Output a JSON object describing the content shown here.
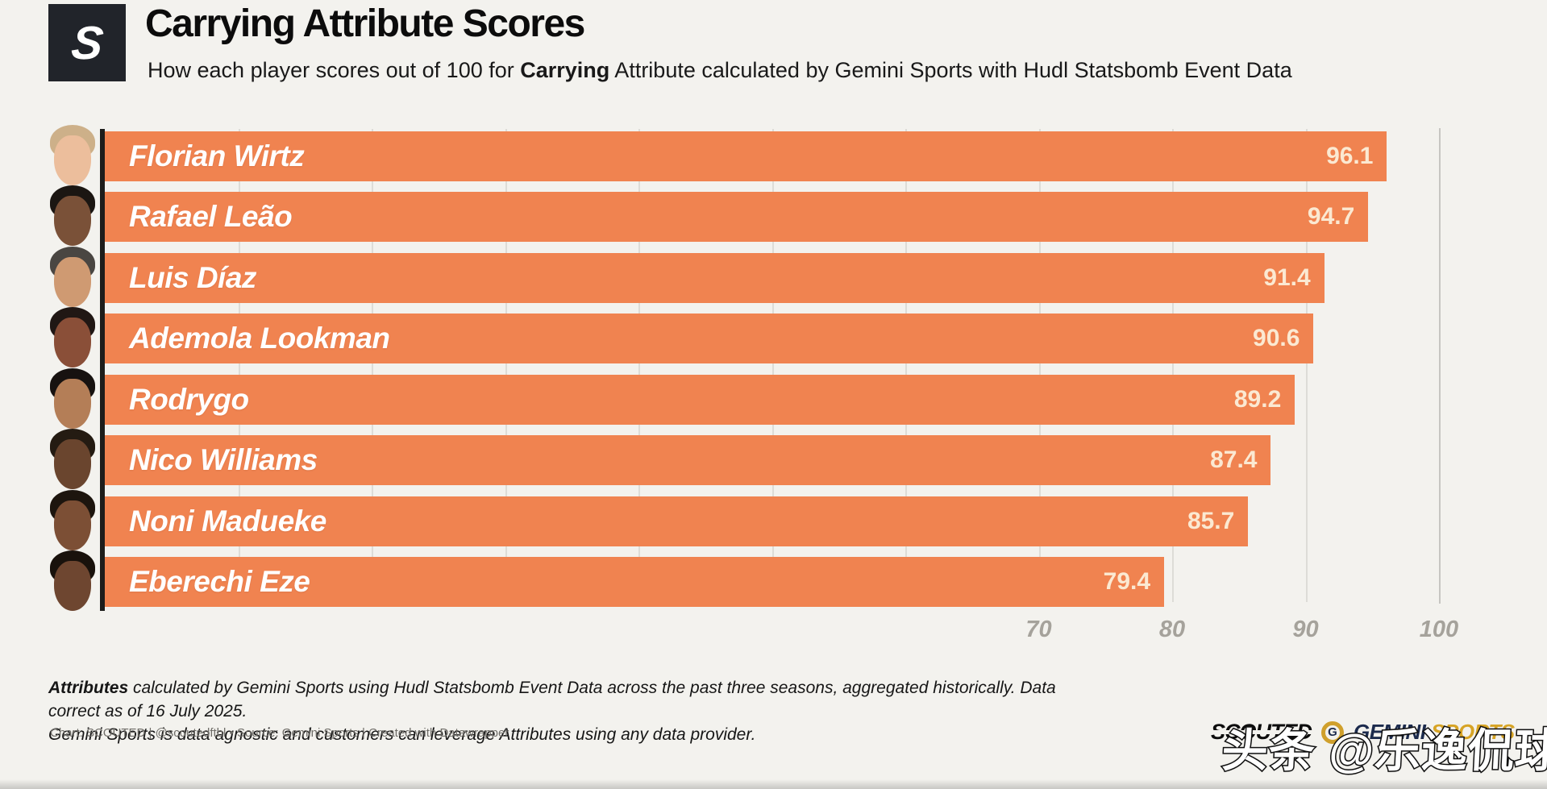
{
  "header": {
    "logo_letter": "S",
    "title": "Carrying Attribute Scores",
    "subtitle_prefix": "How each player scores out of 100 for ",
    "subtitle_bold": "Carrying",
    "subtitle_suffix": " Attribute calculated by Gemini Sports with Hudl Statsbomb Event Data"
  },
  "chart_data": {
    "type": "bar",
    "orientation": "horizontal",
    "title": "Carrying Attribute Scores",
    "categories": [
      "Florian Wirtz",
      "Rafael Leão",
      "Luis Díaz",
      "Ademola Lookman",
      "Rodrygo",
      "Nico Williams",
      "Noni Madueke",
      "Eberechi Eze"
    ],
    "values": [
      96.1,
      94.7,
      91.4,
      90.6,
      89.2,
      87.4,
      85.7,
      79.4
    ],
    "xlim": [
      0,
      100
    ],
    "x_ticks": [
      70,
      80,
      90,
      100
    ],
    "grid_step": 10,
    "grid": true,
    "legend": false,
    "bar_color": "#f08350",
    "value_label_color": "#fbe9d2"
  },
  "players": [
    {
      "name": "Florian Wirtz",
      "value": 96.1,
      "skin": "#ecbe9c",
      "hair": "#cdb089"
    },
    {
      "name": "Rafael Leão",
      "value": 94.7,
      "skin": "#7a5138",
      "hair": "#1b1612"
    },
    {
      "name": "Luis Díaz",
      "value": 91.4,
      "skin": "#cf9a72",
      "hair": "#4a4642"
    },
    {
      "name": "Ademola Lookman",
      "value": 90.6,
      "skin": "#8a4f38",
      "hair": "#201714"
    },
    {
      "name": "Rodrygo",
      "value": 89.2,
      "skin": "#b47e57",
      "hair": "#171210"
    },
    {
      "name": "Nico Williams",
      "value": 87.4,
      "skin": "#6a452e",
      "hair": "#241b12"
    },
    {
      "name": "Noni Madueke",
      "value": 85.7,
      "skin": "#7c4f35",
      "hair": "#1d150e"
    },
    {
      "name": "Eberechi Eze",
      "value": 79.4,
      "skin": "#6e4630",
      "hair": "#19120c"
    }
  ],
  "footer": {
    "note_bold": "Attributes",
    "note_rest": " calculated by Gemini Sports using Hudl Statsbomb Event Data across the past three seasons, aggregated historically. Data correct as of 16 July 2025.",
    "note_line2": "Gemini Sports is data agnostic and customers can leverage Attributes using any data provider.",
    "attribution": "Chart: SCOUTED | @scoutedftbl • Source: Gemini Sports | Created with Datawrapper",
    "scouted_logo": "SCOUTED",
    "gemini_g": "G",
    "gemini_word1": "GEMINI",
    "gemini_word2": "SPORTS",
    "watermark": "头条 @乐逸侃球"
  }
}
